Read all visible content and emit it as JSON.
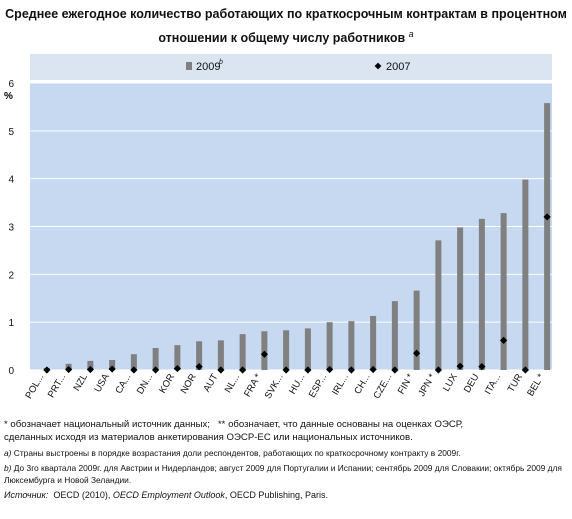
{
  "title_line1": "Среднее ежегодное количество работающих по краткосрочным контрактам в процентном",
  "title_line2": "отношении к общему числу работников",
  "title_superscript": "a",
  "chart_data": {
    "type": "bar",
    "ylabel": "%",
    "ylim": [
      0,
      6
    ],
    "yticks": [
      0,
      1,
      2,
      3,
      4,
      5,
      6
    ],
    "grid": true,
    "legend": "top",
    "categories": [
      "POL...",
      "PRT...",
      "NZL",
      "USA",
      "CA...",
      "DN...",
      "KOR",
      "NOR",
      "AUT",
      "NL...",
      "FRA *",
      "SVK...",
      "HU...",
      "ESP...",
      "IRL...",
      "CH...",
      "CZE...",
      "FIN *",
      "JPN *",
      "LUX",
      "DEU",
      "ITA...",
      "TUR",
      "BEL *"
    ],
    "series": [
      {
        "name": "2009",
        "superscript": "b",
        "kind": "bar",
        "values": [
          0.04,
          0.13,
          0.19,
          0.21,
          0.33,
          0.46,
          0.52,
          0.6,
          0.62,
          0.75,
          0.81,
          0.83,
          0.87,
          1.0,
          1.02,
          1.13,
          1.44,
          1.66,
          2.71,
          2.98,
          3.16,
          3.28,
          3.98,
          5.58
        ]
      },
      {
        "name": "2007",
        "kind": "marker",
        "values": [
          0.0,
          0.01,
          0.01,
          0.02,
          0.0,
          0.0,
          0.03,
          0.07,
          0.0,
          0.0,
          0.33,
          0.0,
          0.0,
          0.01,
          0.0,
          0.01,
          0.0,
          0.35,
          0.0,
          0.08,
          0.07,
          0.62,
          0.0,
          3.2
        ]
      }
    ]
  },
  "colors": {
    "bar": "#808080",
    "marker": "#000000",
    "plot_bg": "#c6d9f1",
    "legend_bg": "#dbe5f1",
    "grid": "#ffffff"
  },
  "notes": {
    "n1_a": "* обозначает национальный источник данных;",
    "n1_b": "** обозначает, что данные основаны на оценках ОЭСР,",
    "n1_c": "сделанных исходя из материалов анкетирования ОЭСР-ЕС или национальных источников.",
    "a_mark": "a)",
    "a_text": "Страны выстроены в порядке возрастания доли респондентов, работающих по краткосрочному контракту в 2009г.",
    "b_mark": "b)",
    "b_text": "До 3го квартала 2009г. для Австрии и Нидерландов; август 2009 для Португалии и Испании; сентябрь 2009 для Словакии; октябрь 2009 для Люксембурга и Новой Зеландии.",
    "src_label": "Источник:",
    "src_1": "OECD (2010),",
    "src_2": "OECD Employment Outlook",
    "src_3": ", OECD Publishing, Paris."
  }
}
